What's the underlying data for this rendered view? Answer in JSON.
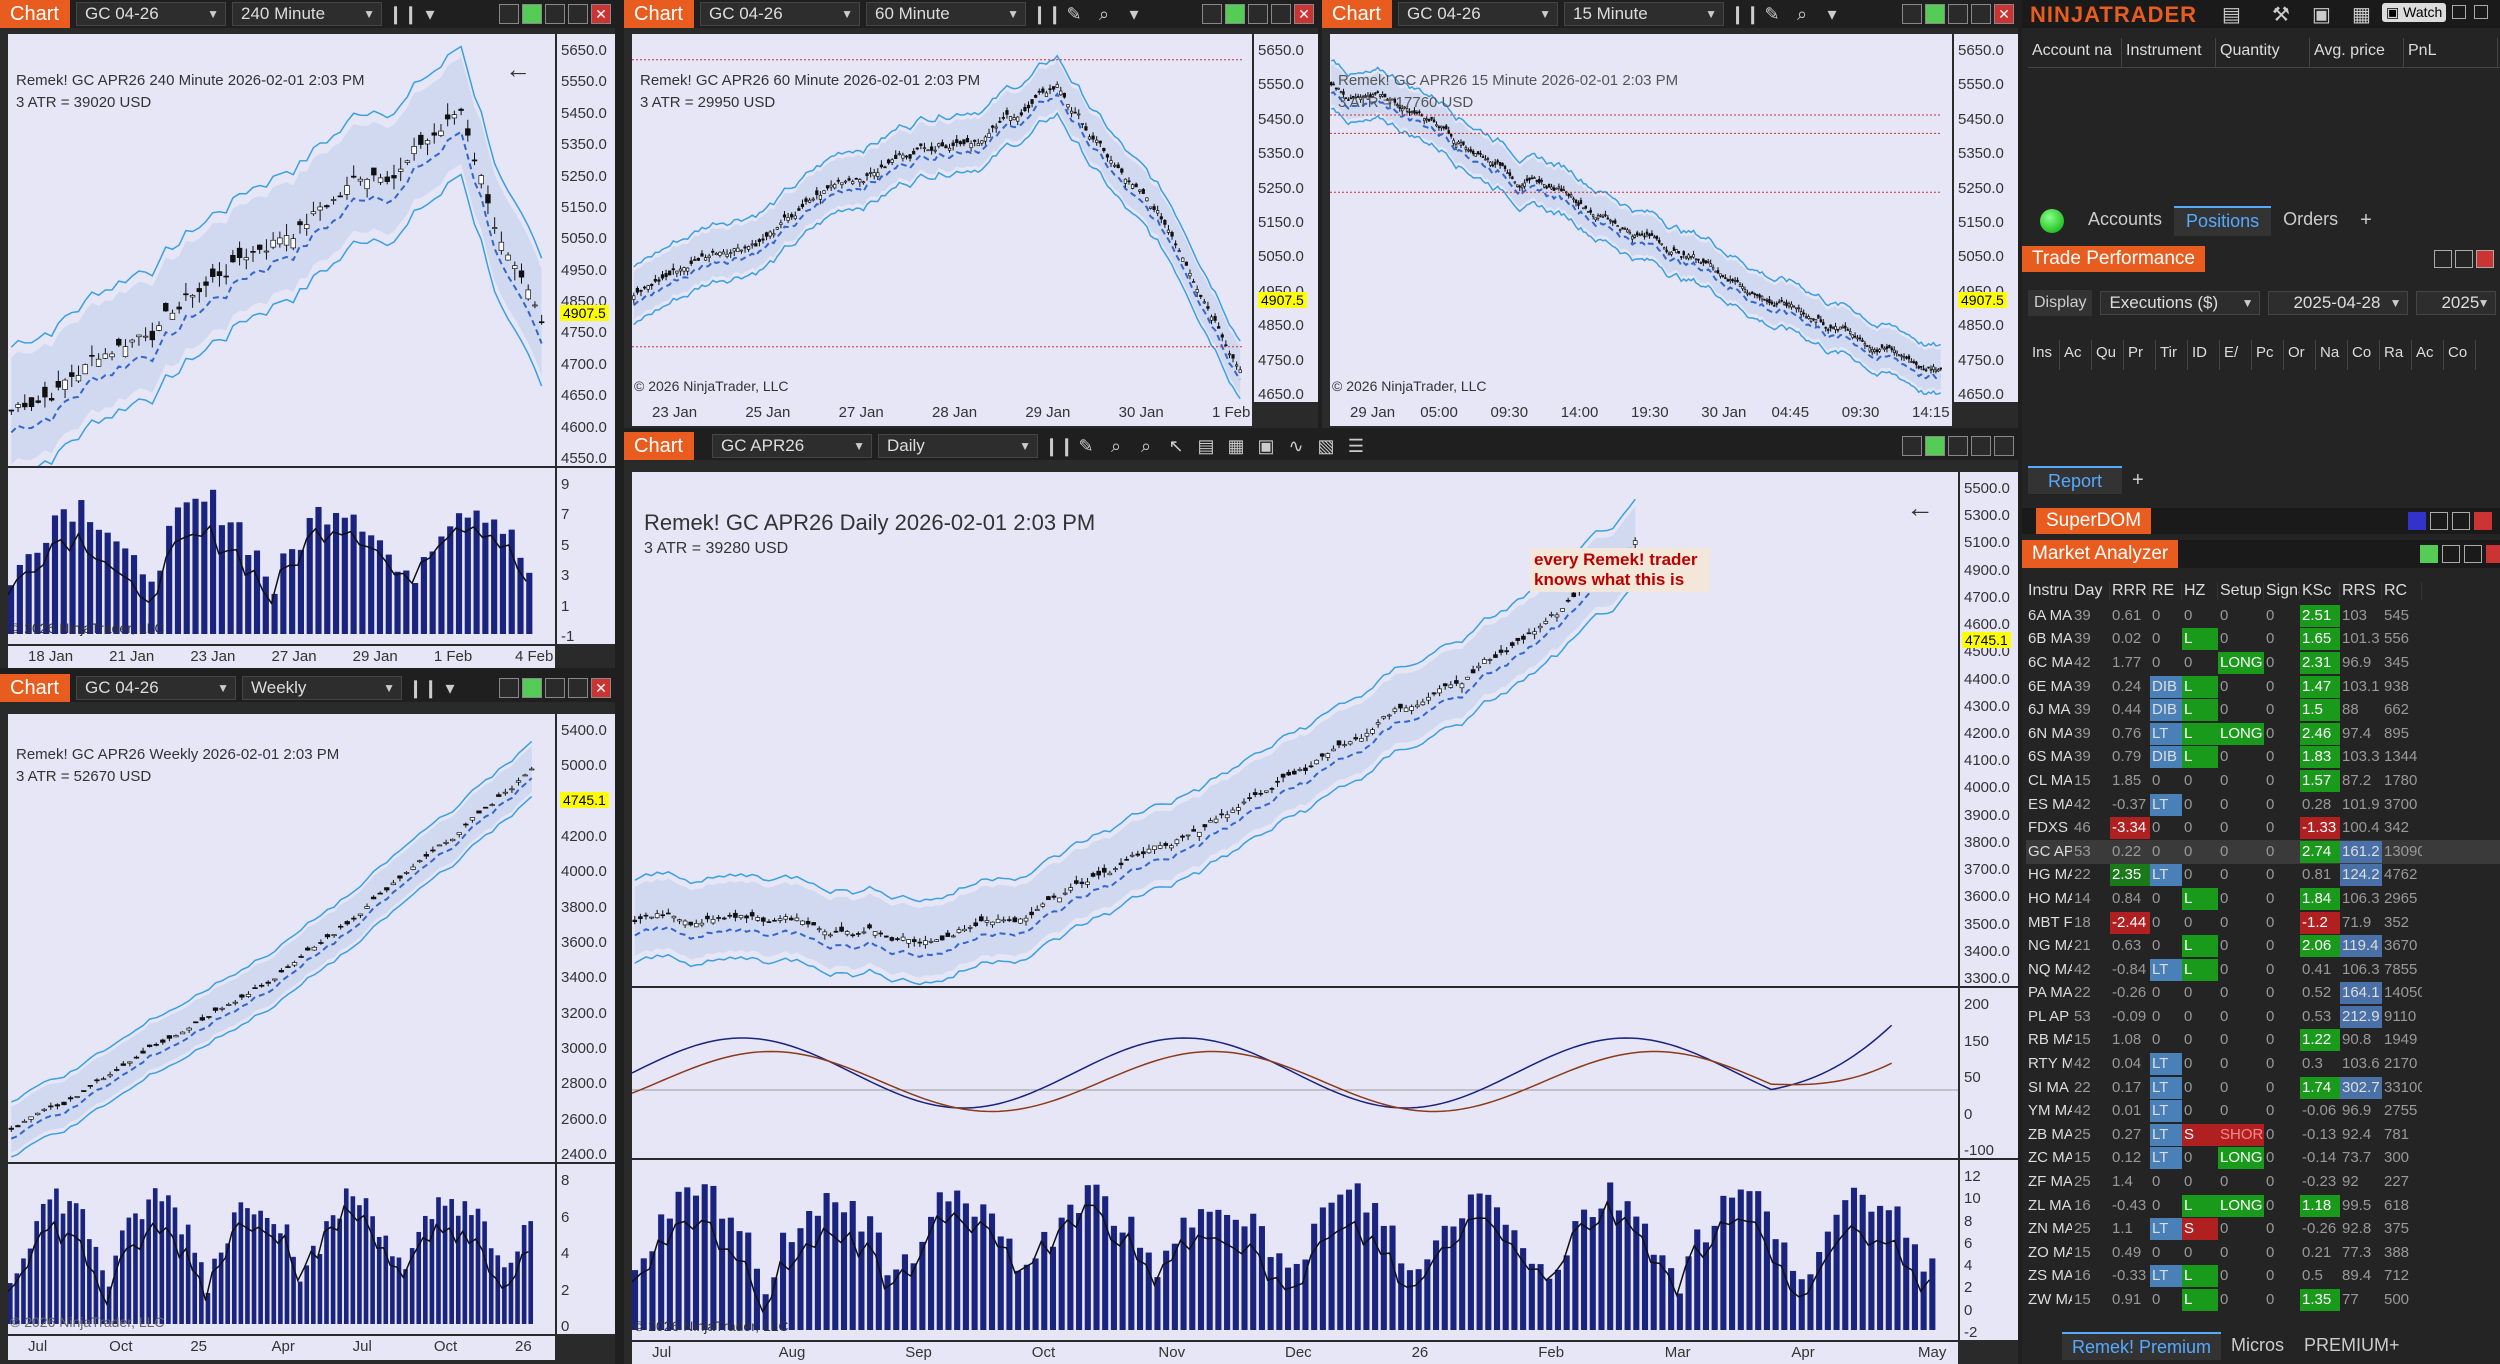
{
  "brand": "NINJATRADER",
  "top_icons": {
    "watch": "Watch"
  },
  "chart1": {
    "title": "Chart",
    "instrument": "GC 04-26",
    "period": "240 Minute",
    "info": "Remek!  GC APR26  240 Minute  2026-02-01 2:03 PM",
    "atr": "3 ATR = 39020 USD",
    "copyright": "© 2026 NinjaTrader, LLC",
    "price_tag": "4907.5",
    "yticks": [
      "5650.0",
      "5550.0",
      "5450.0",
      "5350.0",
      "5250.0",
      "5150.0",
      "5050.0",
      "4950.0",
      "4850.0",
      "4750.0",
      "4700.0",
      "4650.0",
      "4600.0",
      "4550.0"
    ],
    "ind_ticks": [
      "9",
      "7",
      "5",
      "3",
      "1",
      "-1"
    ],
    "xticks": [
      "18 Jan",
      "21 Jan",
      "23 Jan",
      "27 Jan",
      "29 Jan",
      "1 Feb",
      "4 Feb"
    ]
  },
  "chart2": {
    "title": "Chart",
    "instrument": "GC 04-26",
    "period": "60 Minute",
    "info": "Remek!  GC APR26  60 Minute  2026-02-01 2:03 PM",
    "atr": "3 ATR = 29950 USD",
    "copyright": "© 2026 NinjaTrader, LLC",
    "price_tag": "4907.5",
    "yticks": [
      "5650.0",
      "5550.0",
      "5450.0",
      "5350.0",
      "5250.0",
      "5150.0",
      "5050.0",
      "4950.0",
      "4850.0",
      "4750.0",
      "4650.0"
    ],
    "xticks": [
      "23 Jan",
      "25 Jan",
      "27 Jan",
      "28 Jan",
      "29 Jan",
      "30 Jan",
      "1 Feb"
    ]
  },
  "chart3": {
    "title": "Chart",
    "instrument": "GC 04-26",
    "period": "15 Minute",
    "info": "Remek!  GC APR26  15 Minute  2026-02-01 2:03 PM",
    "atr": "3 ATR = 17760 USD",
    "copyright": "© 2026 NinjaTrader, LLC",
    "price_tag": "4907.5",
    "yticks": [
      "5650.0",
      "5550.0",
      "5450.0",
      "5350.0",
      "5250.0",
      "5150.0",
      "5050.0",
      "4950.0",
      "4850.0",
      "4750.0",
      "4650.0"
    ],
    "xticks": [
      "29 Jan",
      "05:00",
      "09:30",
      "14:00",
      "19:30",
      "30 Jan",
      "04:45",
      "09:30",
      "14:15"
    ]
  },
  "chart4": {
    "title": "Chart",
    "instrument": "GC 04-26",
    "period": "Weekly",
    "info": "Remek!  GC APR26  Weekly  2026-02-01 2:03 PM",
    "atr": "3 ATR = 52670 USD",
    "copyright": "© 2026 NinjaTrader, LLC",
    "price_tag": "4745.1",
    "yticks": [
      "5400.0",
      "5000.0",
      "4600.0",
      "4200.0",
      "4000.0",
      "3800.0",
      "3600.0",
      "3400.0",
      "3200.0",
      "3000.0",
      "2800.0",
      "2600.0",
      "2400.0"
    ],
    "ind_ticks": [
      "8",
      "6",
      "4",
      "2",
      "0"
    ],
    "xticks": [
      "Jul",
      "Oct",
      "25",
      "Apr",
      "Jul",
      "Oct",
      "26"
    ]
  },
  "chart5": {
    "title": "Chart",
    "instrument": "GC APR26",
    "period": "Daily",
    "info": "Remek!  GC APR26  Daily  2026-02-01 2:03 PM",
    "atr": "3 ATR = 39280 USD",
    "copyright": "© 2026 NinjaTrader, LLC",
    "price_tag": "4745.1",
    "note": "every Remek! trader knows what this is",
    "yticks": [
      "5500.0",
      "5300.0",
      "5100.0",
      "4900.0",
      "4700.0",
      "4600.0",
      "4500.0",
      "4400.0",
      "4300.0",
      "4200.0",
      "4100.0",
      "4000.0",
      "3900.0",
      "3800.0",
      "3700.0",
      "3600.0",
      "3500.0",
      "3400.0",
      "3300.0"
    ],
    "ind1_ticks": [
      "200",
      "150",
      "50",
      "0",
      "-100"
    ],
    "ind2_ticks": [
      "12",
      "10",
      "8",
      "6",
      "4",
      "2",
      "0",
      "-2"
    ],
    "xticks": [
      "Jul",
      "Aug",
      "Sep",
      "Oct",
      "Nov",
      "Dec",
      "26",
      "Feb",
      "Mar",
      "Apr",
      "May"
    ]
  },
  "account": {
    "headers": [
      "Account na",
      "Instrument",
      "Quantity",
      "Avg. price",
      "PnL"
    ],
    "tabs": [
      "Accounts",
      "Positions",
      "Orders"
    ],
    "add": "+"
  },
  "trade_perf": {
    "title": "Trade Performance",
    "display_label": "Display",
    "display_value": "Executions ($)",
    "date_from": "2025-04-28",
    "date_to": "2025",
    "headers": [
      "Ins",
      "Ac",
      "Qu",
      "Pr",
      "Tir",
      "ID",
      "E/",
      "Pc",
      "Or",
      "Na",
      "Co",
      "Ra",
      "Ac",
      "Co"
    ],
    "report_tab": "Report"
  },
  "superdom": {
    "title": "SuperDOM"
  },
  "market_analyzer": {
    "title": "Market Analyzer",
    "headers": [
      "Instru",
      "Day",
      "RRR",
      "RE",
      "HZ",
      "Setup",
      "Signa",
      "KSc",
      "RRS",
      "RC"
    ],
    "rows": [
      [
        "6A MA",
        "39",
        "0.61",
        "0",
        "0",
        "0",
        "0",
        "2.51",
        "103",
        "545"
      ],
      [
        "6B MA",
        "39",
        "0.02",
        "0",
        "L",
        "0",
        "0",
        "1.65",
        "101.3",
        "556"
      ],
      [
        "6C MA",
        "42",
        "1.77",
        "0",
        "0",
        "LONG",
        "0",
        "2.31",
        "96.9",
        "345"
      ],
      [
        "6E MA",
        "39",
        "0.24",
        "DIB",
        "L",
        "0",
        "0",
        "1.47",
        "103.1",
        "938"
      ],
      [
        "6J MA",
        "39",
        "0.44",
        "DIB",
        "L",
        "0",
        "0",
        "1.5",
        "88",
        "662"
      ],
      [
        "6N MA",
        "39",
        "0.76",
        "LT",
        "L",
        "LONG",
        "0",
        "2.46",
        "97.4",
        "895"
      ],
      [
        "6S MA",
        "39",
        "0.79",
        "DIB",
        "L",
        "0",
        "0",
        "1.83",
        "103.3",
        "1344"
      ],
      [
        "CL MA",
        "15",
        "1.85",
        "0",
        "0",
        "0",
        "0",
        "1.57",
        "87.2",
        "1780"
      ],
      [
        "ES MA",
        "42",
        "-0.37",
        "LT",
        "0",
        "0",
        "0",
        "0.28",
        "101.9",
        "3700"
      ],
      [
        "FDXS",
        "46",
        "-3.34",
        "0",
        "0",
        "0",
        "0",
        "-1.33",
        "100.4",
        "342"
      ],
      [
        "GC AP",
        "53",
        "0.22",
        "0",
        "0",
        "0",
        "0",
        "2.74",
        "161.2",
        "13090"
      ],
      [
        "HG MA",
        "22",
        "2.35",
        "LT",
        "0",
        "0",
        "0",
        "0.81",
        "124.2",
        "4762"
      ],
      [
        "HO MA",
        "14",
        "0.84",
        "0",
        "L",
        "0",
        "0",
        "1.84",
        "106.3",
        "2965"
      ],
      [
        "MBT F",
        "18",
        "-2.44",
        "0",
        "0",
        "0",
        "0",
        "-1.2",
        "71.9",
        "352"
      ],
      [
        "NG MA",
        "21",
        "0.63",
        "0",
        "L",
        "0",
        "0",
        "2.06",
        "119.4",
        "3670"
      ],
      [
        "NQ MA",
        "42",
        "-0.84",
        "LT",
        "L",
        "0",
        "0",
        "0.41",
        "106.3",
        "7855"
      ],
      [
        "PA MA",
        "22",
        "-0.26",
        "0",
        "0",
        "0",
        "0",
        "0.52",
        "164.1",
        "14050"
      ],
      [
        "PL AP",
        "53",
        "-0.09",
        "0",
        "0",
        "0",
        "0",
        "0.53",
        "212.9",
        "9110"
      ],
      [
        "RB MA",
        "15",
        "1.08",
        "0",
        "0",
        "0",
        "0",
        "1.22",
        "90.8",
        "1949"
      ],
      [
        "RTY M",
        "42",
        "0.04",
        "LT",
        "0",
        "0",
        "0",
        "0.3",
        "103.6",
        "2170"
      ],
      [
        "SI MA",
        "22",
        "0.17",
        "LT",
        "0",
        "0",
        "0",
        "1.74",
        "302.7",
        "33100"
      ],
      [
        "YM MA",
        "42",
        "0.01",
        "LT",
        "0",
        "0",
        "0",
        "-0.06",
        "96.9",
        "2755"
      ],
      [
        "ZB MA",
        "25",
        "0.27",
        "LT",
        "S",
        "SHOR",
        "0",
        "-0.13",
        "92.4",
        "781"
      ],
      [
        "ZC MA",
        "15",
        "0.12",
        "LT",
        "0",
        "LONG",
        "0",
        "-0.14",
        "73.7",
        "300"
      ],
      [
        "ZF MA",
        "25",
        "1.4",
        "0",
        "0",
        "0",
        "0",
        "-0.23",
        "92",
        "227"
      ],
      [
        "ZL MA",
        "16",
        "-0.43",
        "0",
        "L",
        "LONG",
        "0",
        "1.18",
        "99.5",
        "618"
      ],
      [
        "ZN MA",
        "25",
        "1.1",
        "LT",
        "S",
        "0",
        "0",
        "-0.26",
        "92.8",
        "375"
      ],
      [
        "ZO MA",
        "15",
        "0.49",
        "0",
        "0",
        "0",
        "0",
        "0.21",
        "77.3",
        "388"
      ],
      [
        "ZS MA",
        "16",
        "-0.33",
        "LT",
        "L",
        "0",
        "0",
        "0.5",
        "89.4",
        "712"
      ],
      [
        "ZW MA",
        "15",
        "0.91",
        "0",
        "L",
        "0",
        "0",
        "1.35",
        "77",
        "500"
      ]
    ],
    "tabs": [
      "Remek! Premium",
      "Micros",
      "PREMIUM+"
    ]
  }
}
